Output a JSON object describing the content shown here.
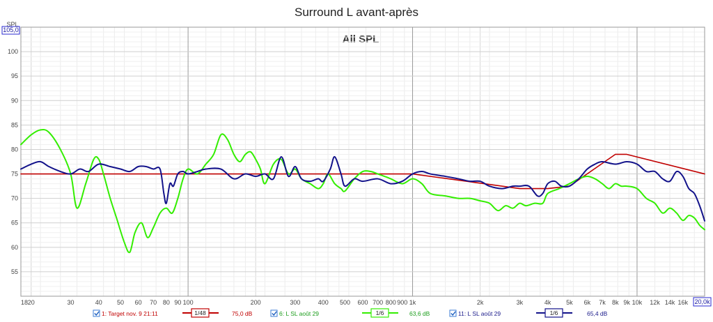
{
  "chart_data": {
    "type": "line",
    "title": "Surround L avant-après",
    "subtitle": "All SPL",
    "ylabel": "SPL",
    "x_scale": "log",
    "xlim": [
      18,
      20000
    ],
    "ylim": [
      50,
      105
    ],
    "y_top_label": "105,0",
    "x_end_label": "20,0k",
    "yticks": [
      55,
      60,
      65,
      70,
      75,
      80,
      85,
      90,
      95,
      100
    ],
    "xtick_labels": [
      {
        "v": 18,
        "t": "18"
      },
      {
        "v": 20,
        "t": "20"
      },
      {
        "v": 30,
        "t": "30"
      },
      {
        "v": 40,
        "t": "40"
      },
      {
        "v": 50,
        "t": "50"
      },
      {
        "v": 60,
        "t": "60"
      },
      {
        "v": 70,
        "t": "70"
      },
      {
        "v": 80,
        "t": "80"
      },
      {
        "v": 90,
        "t": "90"
      },
      {
        "v": 100,
        "t": "100"
      },
      {
        "v": 200,
        "t": "200"
      },
      {
        "v": 300,
        "t": "300"
      },
      {
        "v": 400,
        "t": "400"
      },
      {
        "v": 500,
        "t": "500"
      },
      {
        "v": 600,
        "t": "600"
      },
      {
        "v": 700,
        "t": "700"
      },
      {
        "v": 800,
        "t": "800"
      },
      {
        "v": 900,
        "t": "900"
      },
      {
        "v": 1000,
        "t": "1k"
      },
      {
        "v": 2000,
        "t": "2k"
      },
      {
        "v": 3000,
        "t": "3k"
      },
      {
        "v": 4000,
        "t": "4k"
      },
      {
        "v": 5000,
        "t": "5k"
      },
      {
        "v": 6000,
        "t": "6k"
      },
      {
        "v": 7000,
        "t": "7k"
      },
      {
        "v": 8000,
        "t": "8k"
      },
      {
        "v": 9000,
        "t": "9k"
      },
      {
        "v": 10000,
        "t": "10k"
      },
      {
        "v": 12000,
        "t": "12k"
      },
      {
        "v": 14000,
        "t": "14k"
      },
      {
        "v": 16000,
        "t": "16k"
      }
    ],
    "grid": true,
    "series": [
      {
        "name": "1: Target nov. 9 21:11",
        "color": "#c00000",
        "smoothing": "1/48",
        "level": "75,0 dB",
        "x": [
          18,
          1000,
          3000,
          4000,
          5000,
          8000,
          9000,
          20000
        ],
        "y": [
          75,
          75,
          72,
          72,
          72.5,
          79,
          79,
          75
        ]
      },
      {
        "name": "6: L SL août 29",
        "color": "#33ee00",
        "smoothing": "1/6",
        "level": "63,6 dB",
        "x": [
          18,
          20,
          22,
          24,
          27,
          30,
          32,
          35,
          38,
          40,
          42,
          45,
          48,
          52,
          55,
          58,
          62,
          66,
          70,
          75,
          80,
          85,
          90,
          95,
          100,
          110,
          120,
          130,
          140,
          150,
          160,
          170,
          180,
          190,
          200,
          210,
          220,
          240,
          260,
          280,
          300,
          320,
          350,
          380,
          400,
          420,
          450,
          480,
          500,
          550,
          600,
          650,
          700,
          750,
          800,
          900,
          1000,
          1100,
          1200,
          1400,
          1600,
          1800,
          2000,
          2200,
          2400,
          2600,
          2800,
          3000,
          3200,
          3500,
          3800,
          4000,
          4500,
          5000,
          5500,
          6000,
          6500,
          7000,
          7500,
          8000,
          8500,
          9000,
          10000,
          11000,
          12000,
          13000,
          14000,
          15000,
          16000,
          17000,
          18000,
          19000,
          20000
        ],
        "y": [
          81,
          83,
          84,
          83.5,
          80,
          75,
          68,
          73,
          78,
          78,
          75,
          70,
          66,
          61,
          59,
          63,
          65,
          62,
          64,
          67,
          68,
          67,
          70,
          74,
          76,
          75,
          77,
          79,
          83,
          82,
          79,
          77.5,
          79,
          79.5,
          78,
          76,
          73,
          77,
          78,
          75,
          76,
          74,
          73,
          72,
          73,
          75,
          73,
          72,
          71.5,
          74,
          75.5,
          75.5,
          75,
          74.5,
          74,
          73,
          74,
          73,
          71,
          70.5,
          70,
          70,
          69.5,
          69,
          67.5,
          68.5,
          68,
          69,
          68.5,
          69,
          69,
          71,
          72,
          73,
          74,
          74.5,
          74,
          73,
          72,
          73,
          72.5,
          72.5,
          72,
          70,
          69,
          67,
          68,
          67,
          65.5,
          66.5,
          66,
          64.5,
          63.6
        ]
      },
      {
        "name": "11: L SL août 29",
        "color": "#12128a",
        "smoothing": "1/6",
        "level": "65,4 dB",
        "x": [
          18,
          20,
          22,
          24,
          27,
          30,
          33,
          36,
          40,
          45,
          50,
          55,
          60,
          65,
          70,
          75,
          78,
          80,
          83,
          86,
          90,
          95,
          100,
          110,
          120,
          140,
          160,
          180,
          200,
          220,
          240,
          260,
          280,
          300,
          320,
          350,
          380,
          400,
          430,
          450,
          480,
          500,
          550,
          600,
          700,
          800,
          900,
          1000,
          1100,
          1200,
          1400,
          1600,
          1800,
          2000,
          2200,
          2500,
          2800,
          3000,
          3300,
          3600,
          3800,
          4000,
          4300,
          4600,
          5000,
          5500,
          6000,
          6500,
          7000,
          8000,
          9000,
          10000,
          11000,
          12000,
          13000,
          14000,
          15000,
          16000,
          17000,
          18000,
          19000,
          20000
        ],
        "y": [
          76,
          77,
          77.5,
          76.5,
          75.5,
          75,
          76,
          75.5,
          77,
          76.5,
          76,
          75.5,
          76.5,
          76.5,
          76,
          76,
          71,
          69,
          73,
          72.5,
          75,
          75.5,
          75,
          75.5,
          76,
          76,
          74,
          75,
          74.5,
          75,
          74,
          78.5,
          74.5,
          76.5,
          74,
          73.5,
          74,
          73.5,
          76,
          78.5,
          75,
          72.5,
          74,
          73.5,
          74,
          73,
          73.5,
          75,
          75.5,
          75,
          74.5,
          74,
          73.5,
          73.5,
          72.5,
          72,
          72.5,
          72.5,
          72.5,
          70.5,
          71,
          73,
          73.5,
          72.5,
          72.5,
          74,
          76,
          77,
          77.5,
          77,
          77.5,
          77,
          75.5,
          75.5,
          74,
          73.5,
          75.5,
          74.5,
          72,
          71,
          68.5,
          65.4
        ]
      }
    ]
  }
}
